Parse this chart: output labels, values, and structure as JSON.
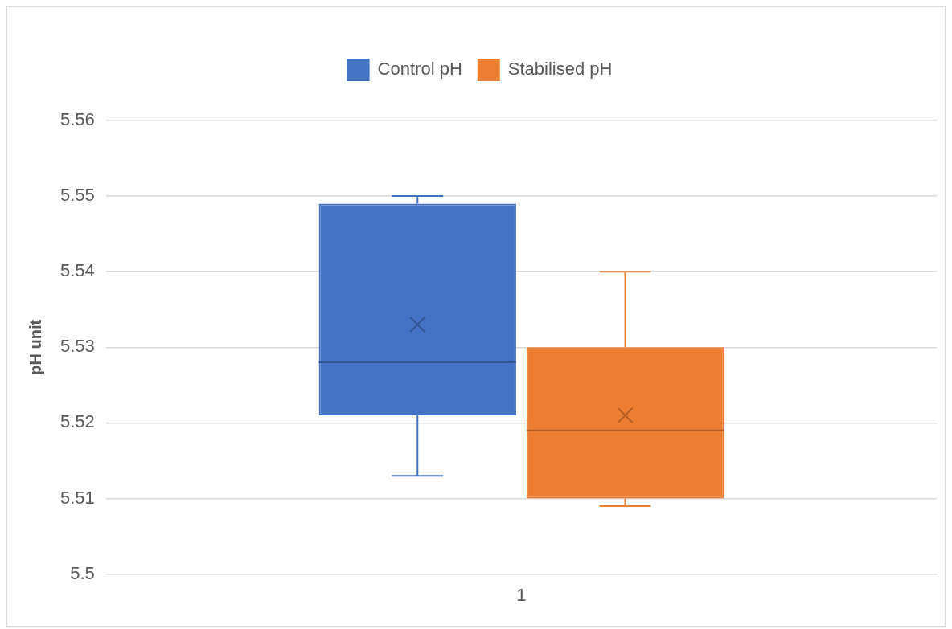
{
  "chart_data": {
    "type": "box",
    "ylabel": "pH unit",
    "categories": [
      "1"
    ],
    "series": [
      {
        "name": "Control pH",
        "color": "#4472c4",
        "boxes": [
          {
            "low": 5.513,
            "q1": 5.521,
            "median": 5.528,
            "q3": 5.549,
            "high": 5.55,
            "mean": 5.533
          }
        ]
      },
      {
        "name": "Stabilised pH",
        "color": "#ed7d31",
        "boxes": [
          {
            "low": 5.509,
            "q1": 5.51,
            "median": 5.519,
            "q3": 5.53,
            "high": 5.54,
            "mean": 5.521
          }
        ]
      }
    ],
    "ylim": [
      5.5,
      5.56
    ],
    "yticks": [
      5.5,
      5.51,
      5.52,
      5.53,
      5.54,
      5.55,
      5.56
    ],
    "grid": "y",
    "legend": "top"
  }
}
